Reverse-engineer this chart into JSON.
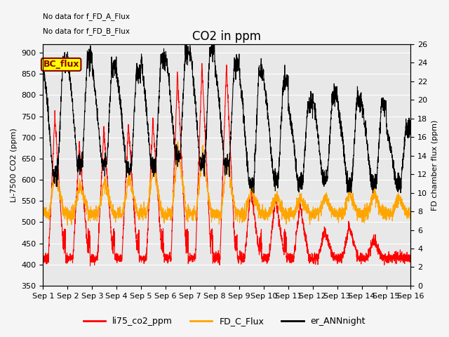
{
  "title": "CO2 in ppm",
  "ylabel_left": "Li-7500 CO2 (ppm)",
  "ylabel_right": "FD chamber flux (ppm)",
  "ylim_left": [
    350,
    920
  ],
  "ylim_right": [
    0,
    26
  ],
  "yticks_left": [
    350,
    400,
    450,
    500,
    550,
    600,
    650,
    700,
    750,
    800,
    850,
    900
  ],
  "yticks_right": [
    0,
    2,
    4,
    6,
    8,
    10,
    12,
    14,
    16,
    18,
    20,
    22,
    24,
    26
  ],
  "xlabel_ticks": [
    "Sep 1",
    "Sep 2",
    "Sep 3",
    "Sep 4",
    "Sep 5",
    "Sep 6",
    "Sep 7",
    "Sep 8",
    "Sep 9",
    "Sep 10",
    "Sep 11",
    "Sep 12",
    "Sep 13",
    "Sep 14",
    "Sep 15",
    "Sep 16"
  ],
  "no_data_text1": "No data for f_FD_A_Flux",
  "no_data_text2": "No data for f_FD_B_Flux",
  "bc_flux_label": "BC_flux",
  "legend_entries": [
    "li75_co2_ppm",
    "FD_C_Flux",
    "er_ANNnight"
  ],
  "line_colors": [
    "#ff0000",
    "#ffa500",
    "#000000"
  ],
  "fig_bg_color": "#f5f5f5",
  "plot_bg_color": "#e8e8e8",
  "grid_color": "#ffffff",
  "title_fontsize": 12,
  "label_fontsize": 8,
  "tick_fontsize": 8,
  "figsize": [
    6.4,
    4.8
  ],
  "dpi": 100
}
